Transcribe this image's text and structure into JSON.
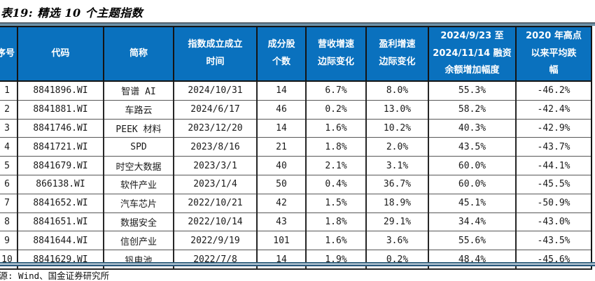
{
  "title": "表19: 精选 10 个主题指数",
  "source_note": "来源: Wind、国金证券研究所",
  "colors": {
    "header_bg": "#0a71be",
    "header_text": "#ffffff",
    "grid_dark": "#262626",
    "grid_light": "#575757",
    "top_rule": "#6e93a9",
    "bottom_rule": "#2b5a7d"
  },
  "table": {
    "headers": [
      "序号",
      "代码",
      "简称",
      "指数成立成立\n时间",
      "成分股\n个数",
      "营收增速\n边际变化",
      "盈利增速\n边际变化",
      "2024/9/23 至\n2024/11/14 融资\n余额增加幅度",
      "2020 年高点\n以来平均跌\n幅"
    ],
    "rows": [
      [
        "1",
        "8841896.WI",
        "智谱 AI",
        "2024/10/31",
        "14",
        "6.7%",
        "8.0%",
        "55.3%",
        "-46.2%"
      ],
      [
        "2",
        "8841881.WI",
        "车路云",
        "2024/6/17",
        "46",
        "0.2%",
        "13.0%",
        "58.2%",
        "-42.4%"
      ],
      [
        "3",
        "8841746.WI",
        "PEEK 材料",
        "2023/12/20",
        "14",
        "1.6%",
        "10.2%",
        "40.3%",
        "-42.9%"
      ],
      [
        "4",
        "8841721.WI",
        "SPD",
        "2023/8/16",
        "21",
        "1.8%",
        "2.0%",
        "43.5%",
        "-43.7%"
      ],
      [
        "5",
        "8841679.WI",
        "时空大数据",
        "2023/3/1",
        "40",
        "2.1%",
        "3.1%",
        "60.0%",
        "-44.1%"
      ],
      [
        "6",
        "866138.WI",
        "软件产业",
        "2023/1/4",
        "50",
        "0.4%",
        "36.7%",
        "60.0%",
        "-45.5%"
      ],
      [
        "7",
        "8841652.WI",
        "汽车芯片",
        "2022/10/21",
        "42",
        "1.5%",
        "18.9%",
        "45.1%",
        "-50.9%"
      ],
      [
        "8",
        "8841651.WI",
        "数据安全",
        "2022/10/14",
        "43",
        "1.8%",
        "29.1%",
        "34.4%",
        "-43.0%"
      ],
      [
        "9",
        "8841644.WI",
        "信创产业",
        "2022/9/19",
        "101",
        "1.6%",
        "3.6%",
        "55.6%",
        "-43.5%"
      ],
      [
        "10",
        "8841629.WI",
        "钒电池",
        "2022/7/8",
        "14",
        "1.9%",
        "0.2%",
        "48.4%",
        "-45.6%"
      ]
    ]
  }
}
